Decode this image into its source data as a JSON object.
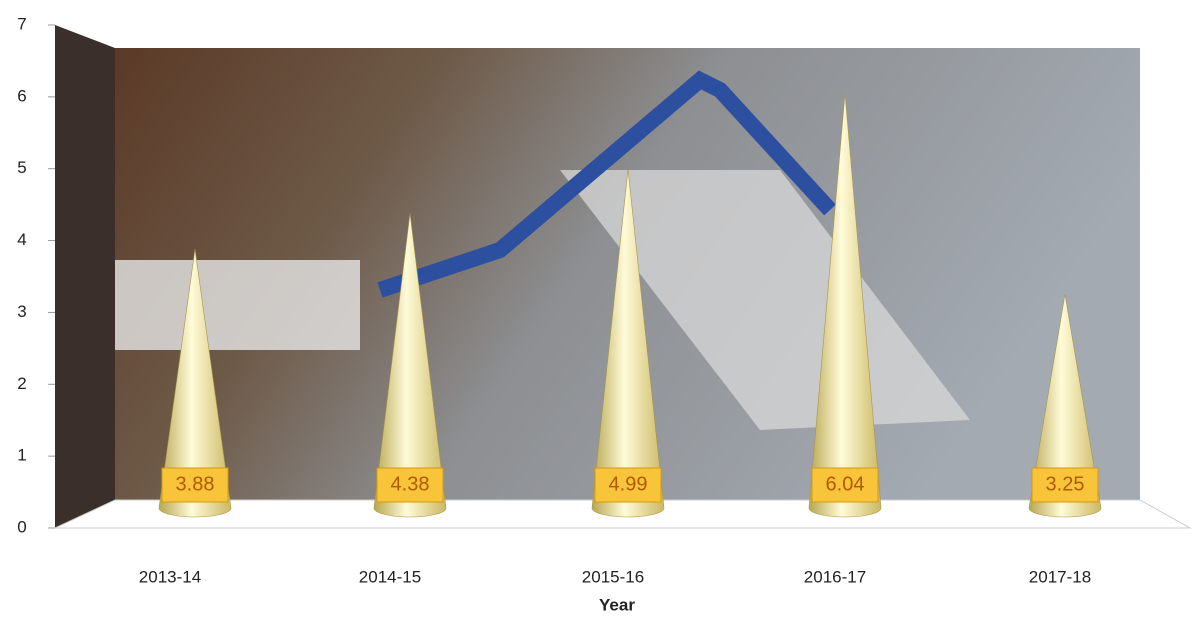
{
  "chart_data": {
    "type": "cone",
    "x_label": "Year",
    "categories": [
      "2013-14",
      "2014-15",
      "2015-16",
      "2016-17",
      "2017-18"
    ],
    "values": [
      3.88,
      4.38,
      4.99,
      6.04,
      3.25
    ],
    "color": "#f2eaa0",
    "ylim": [
      0,
      7
    ],
    "yticks": [
      0,
      1,
      2,
      3,
      4,
      5,
      6,
      7
    ]
  }
}
